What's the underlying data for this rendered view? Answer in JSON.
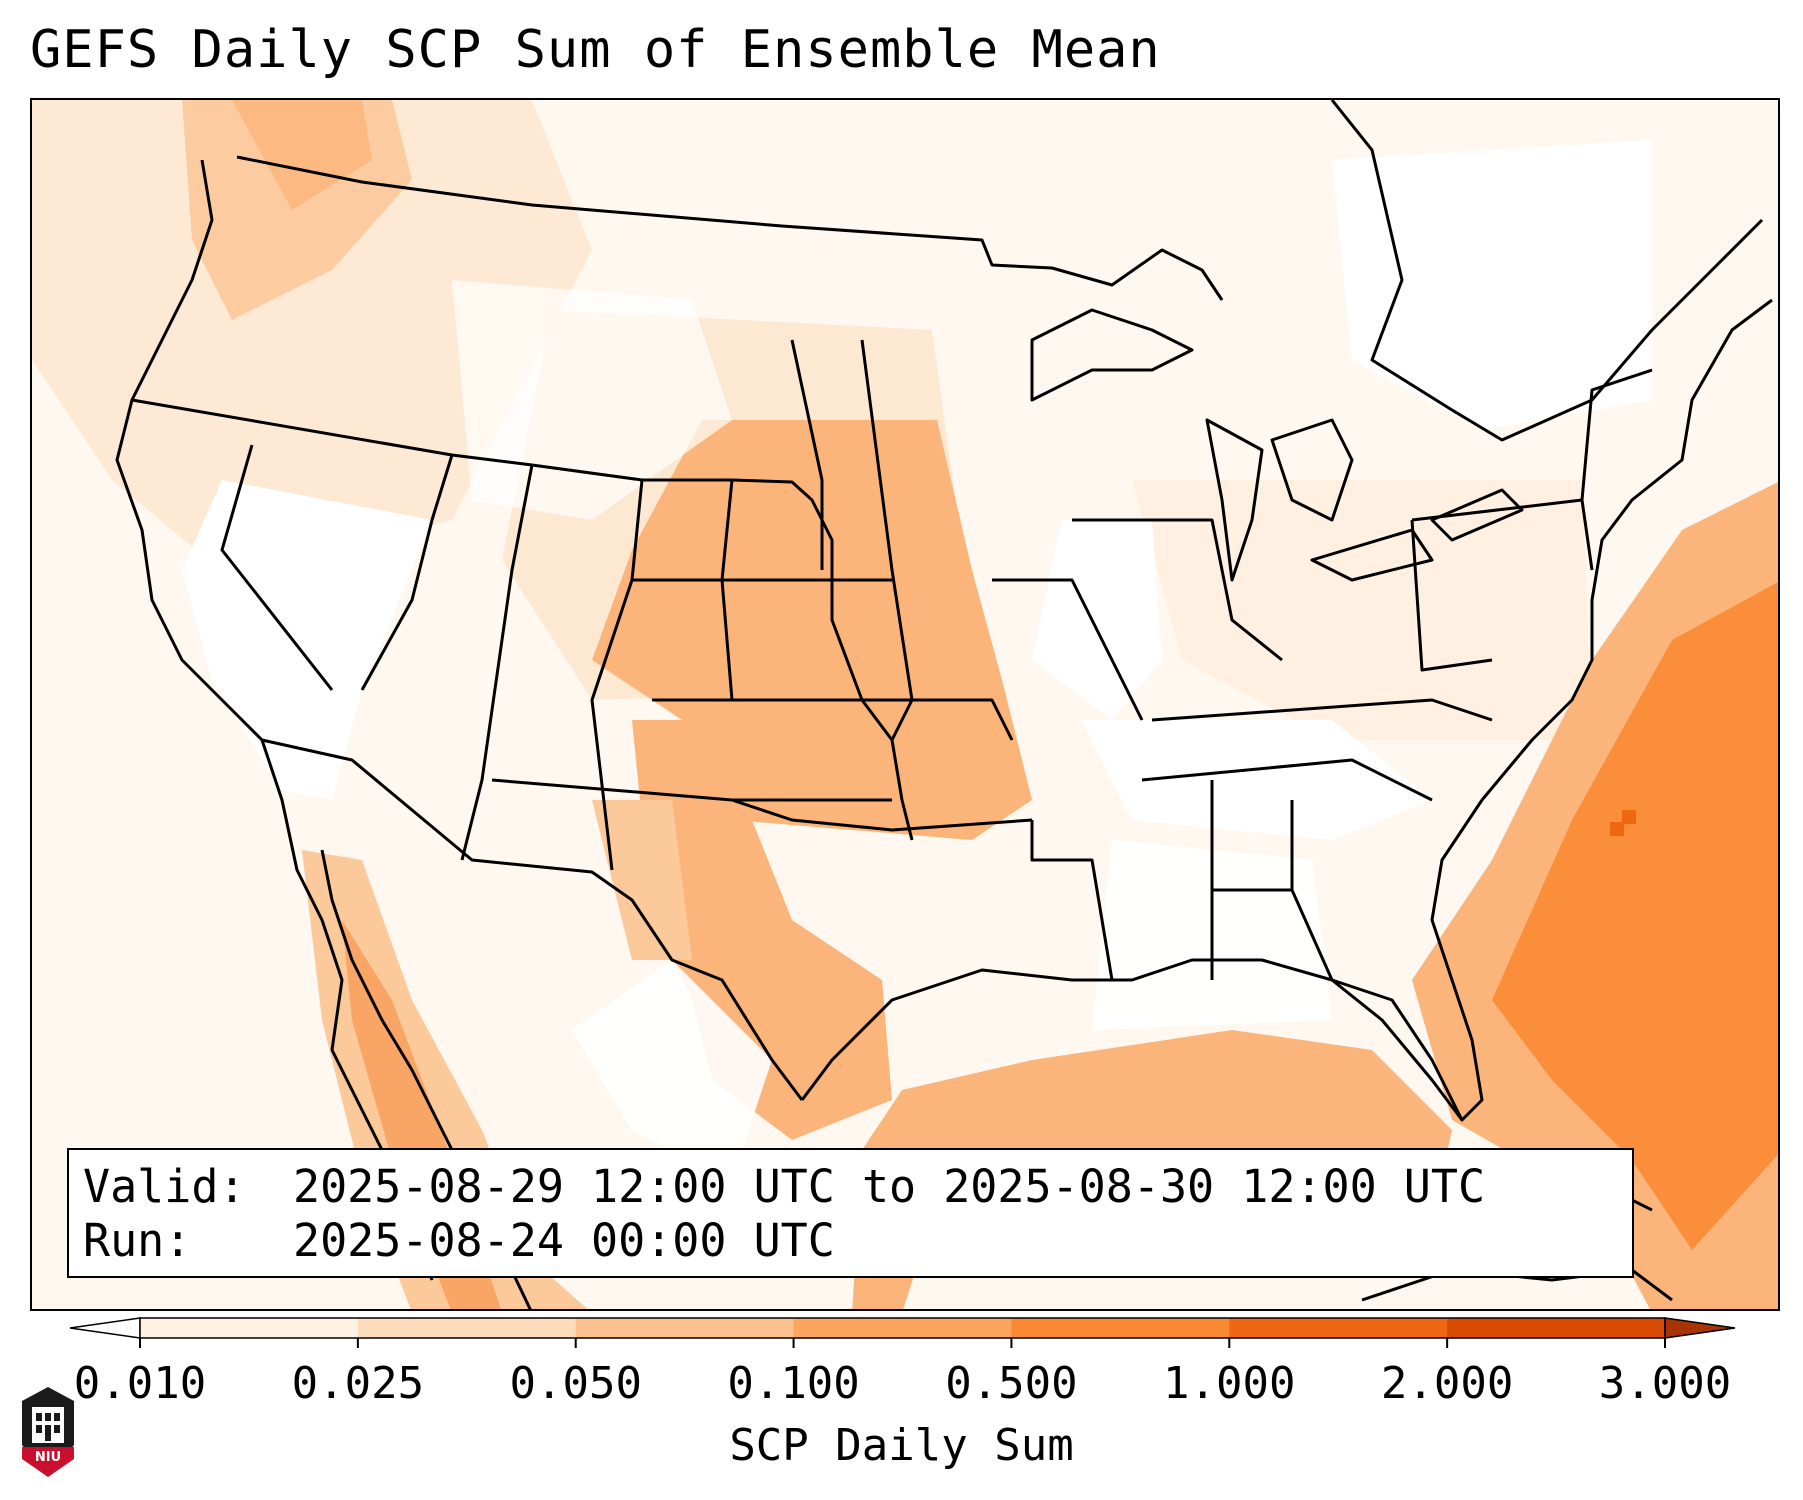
{
  "title": "GEFS Daily SCP Sum of Ensemble Mean",
  "info": {
    "valid_label": "Valid:",
    "valid_value": "2025-08-29 12:00 UTC to 2025-08-30 12:00 UTC",
    "run_label": "Run:",
    "run_value": "2025-08-24 00:00 UTC"
  },
  "colorbar": {
    "label": "SCP Daily Sum",
    "ticks": [
      "0.010",
      "0.025",
      "0.050",
      "0.100",
      "0.500",
      "1.000",
      "2.000",
      "3.000"
    ],
    "colors": [
      "#fff1e3",
      "#fddcbb",
      "#fcc18f",
      "#fca55f",
      "#f98a33",
      "#ef6712",
      "#d94a03"
    ],
    "under_color": "#ffffff",
    "over_color": "#a83303"
  },
  "logo": {
    "text": "NIU"
  }
}
